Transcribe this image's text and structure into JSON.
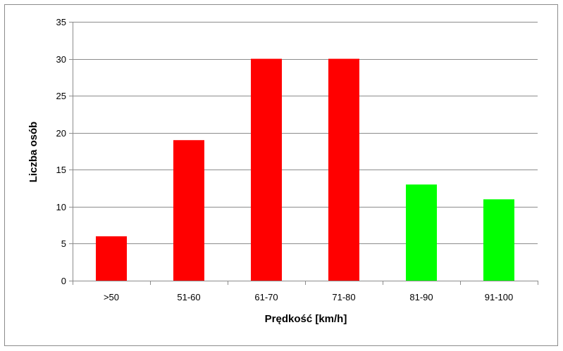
{
  "chart_data": {
    "type": "bar",
    "categories": [
      ">50",
      "51-60",
      "61-70",
      "71-80",
      "81-90",
      "91-100"
    ],
    "values": [
      6,
      19,
      30,
      30,
      13,
      11
    ],
    "bar_colors": [
      "#ff0000",
      "#ff0000",
      "#ff0000",
      "#ff0000",
      "#00ff00",
      "#00ff00"
    ],
    "title": "",
    "xlabel": "Prędkość  [km/h]",
    "ylabel": "Liczba osób",
    "ylim": [
      0,
      35
    ],
    "yticks": [
      0,
      5,
      10,
      15,
      20,
      25,
      30,
      35
    ],
    "grid": true,
    "legend": "none",
    "grid_color": "#8c8c8c",
    "axis_color": "#8c8c8c"
  }
}
